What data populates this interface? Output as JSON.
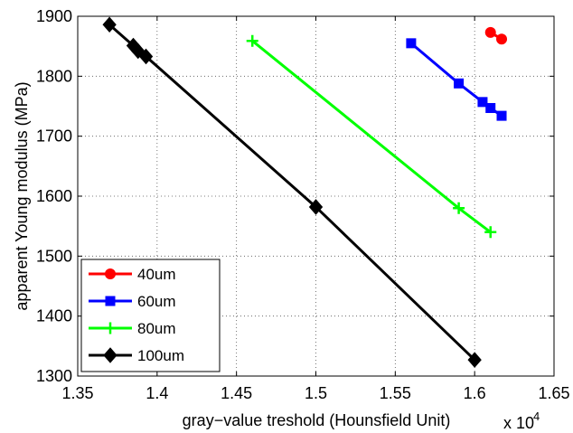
{
  "chart_data": {
    "type": "line",
    "xlabel": "gray−value treshold (Hounsfield Unit)",
    "ylabel": "apparent Young modulus (MPa)",
    "x_multiplier_base": "x 10",
    "x_multiplier_exp": "4",
    "xlim": [
      1.35,
      1.65
    ],
    "ylim": [
      1300,
      1900
    ],
    "xticks": [
      1.35,
      1.4,
      1.45,
      1.5,
      1.55,
      1.6,
      1.65
    ],
    "xtick_labels": [
      "1.35",
      "1.4",
      "1.45",
      "1.5",
      "1.55",
      "1.6",
      "1.65"
    ],
    "yticks": [
      1300,
      1400,
      1500,
      1600,
      1700,
      1800,
      1900
    ],
    "ytick_labels": [
      "1300",
      "1400",
      "1500",
      "1600",
      "1700",
      "1800",
      "1900"
    ],
    "grid": true,
    "legend_position": "bottom-left",
    "series": [
      {
        "name": "40um",
        "color": "#ff0000",
        "marker": "circle",
        "x": [
          1.61,
          1.617
        ],
        "y": [
          1873,
          1862
        ]
      },
      {
        "name": "60um",
        "color": "#0000ff",
        "marker": "square",
        "x": [
          1.56,
          1.59,
          1.605,
          1.61,
          1.617
        ],
        "y": [
          1855,
          1788,
          1757,
          1747,
          1734
        ]
      },
      {
        "name": "80um",
        "color": "#00ff00",
        "marker": "plus",
        "x": [
          1.46,
          1.59,
          1.61
        ],
        "y": [
          1859,
          1580,
          1540
        ]
      },
      {
        "name": "100um",
        "color": "#000000",
        "marker": "diamond",
        "x": [
          1.37,
          1.385,
          1.388,
          1.393,
          1.5,
          1.6
        ],
        "y": [
          1886,
          1851,
          1842,
          1833,
          1582,
          1327
        ]
      }
    ]
  }
}
